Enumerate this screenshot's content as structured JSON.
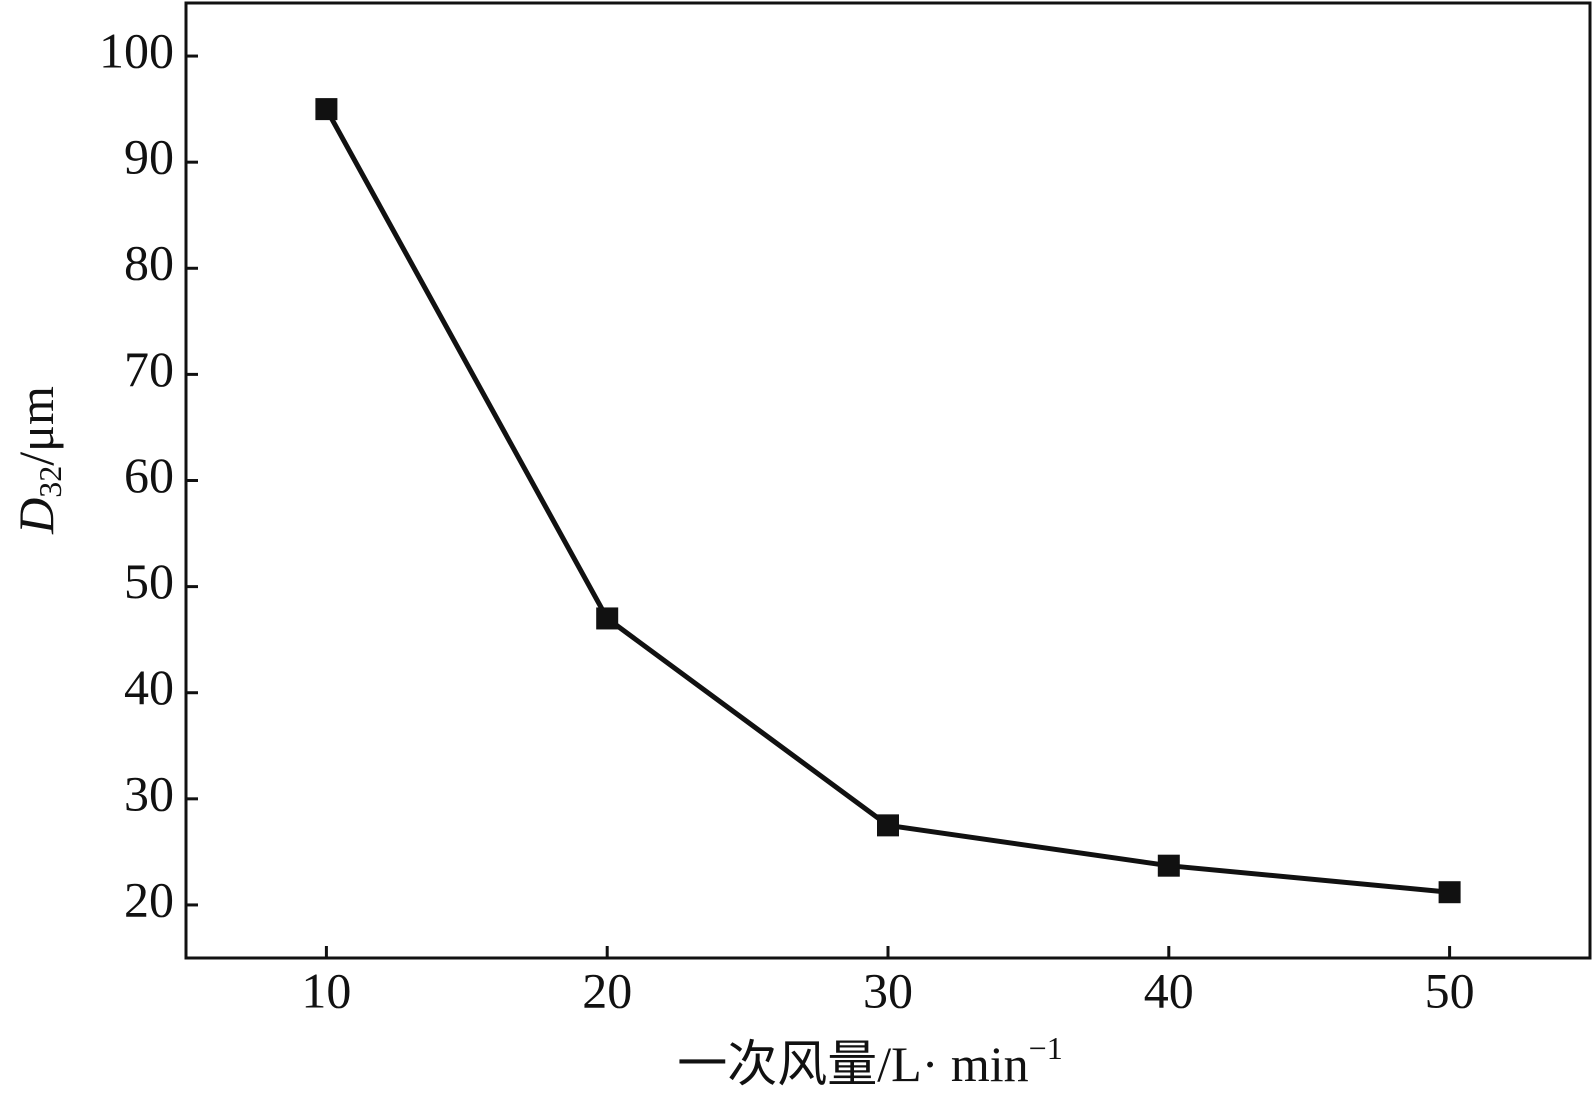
{
  "chart_data": {
    "type": "line",
    "x": [
      10,
      20,
      30,
      40,
      50
    ],
    "series": [
      {
        "color": "#111111",
        "values": [
          95,
          47,
          27.5,
          23.7,
          21.2
        ]
      }
    ],
    "xlim": [
      5,
      55
    ],
    "xticks": [
      10,
      20,
      30,
      40,
      50
    ],
    "ylim": [
      15,
      105
    ],
    "yticks": [
      20,
      30,
      40,
      50,
      60,
      70,
      80,
      90,
      100
    ],
    "y_label": {
      "symbol": "D",
      "subscript": "32",
      "unit": "/μm"
    },
    "x_label": {
      "text": "一次风量/L· min",
      "superscript": "−1"
    }
  }
}
